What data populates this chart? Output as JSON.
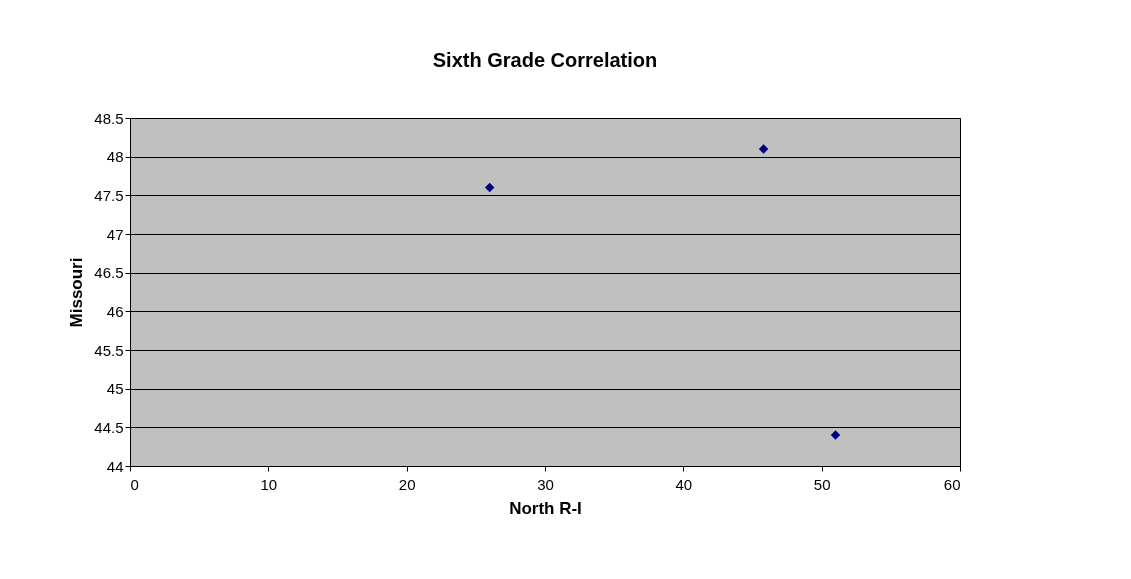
{
  "chart_data": {
    "type": "scatter",
    "title": "Sixth Grade Correlation",
    "xlabel": "North R-I",
    "ylabel": "Missouri",
    "x": [
      26,
      45.8,
      51
    ],
    "series": [
      {
        "color": "#000080",
        "values": [
          47.6,
          48.1,
          44.4
        ]
      }
    ],
    "xlim": [
      0,
      60
    ],
    "xticks": [
      0,
      10,
      20,
      30,
      40,
      50,
      60
    ],
    "ylim": [
      44,
      48.5
    ],
    "yticks": [
      44,
      44.5,
      45,
      45.5,
      46,
      46.5,
      47,
      47.5,
      48,
      48.5
    ],
    "grid": "y",
    "marker": "diamond"
  }
}
